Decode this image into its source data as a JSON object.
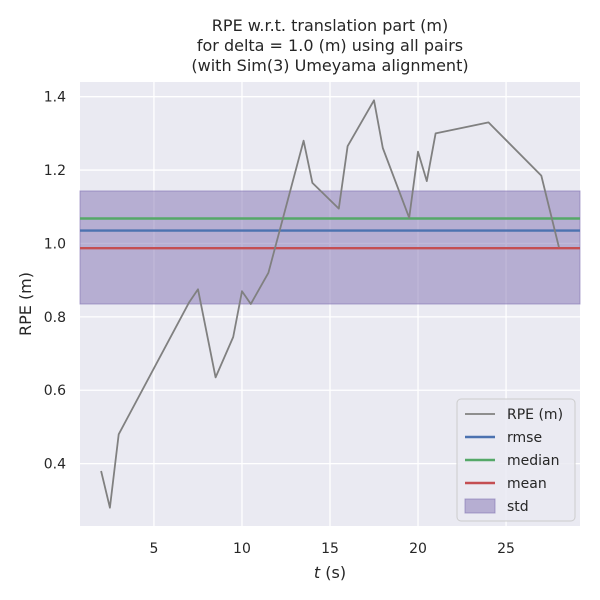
{
  "chart_data": {
    "type": "line",
    "title_lines": [
      "RPE w.r.t. translation part (m)",
      "for delta = 1.0 (m) using all pairs",
      "(with Sim(3) Umeyama alignment)"
    ],
    "xlabel_italic": "t",
    "xlabel_rest": " (s)",
    "ylabel": "RPE (m)",
    "xlim": [
      0.8,
      29.2
    ],
    "ylim": [
      0.23,
      1.44
    ],
    "xticks": [
      5,
      10,
      15,
      20,
      25
    ],
    "yticks": [
      0.4,
      0.6,
      0.8,
      1.0,
      1.2,
      1.4
    ],
    "xtick_labels": [
      "5",
      "10",
      "15",
      "20",
      "25"
    ],
    "ytick_labels": [
      "0.4",
      "0.6",
      "0.8",
      "1.0",
      "1.2",
      "1.4"
    ],
    "grid": true,
    "legend_position": "lower-right",
    "series": [
      {
        "name": "RPE (m)",
        "color": "#808080",
        "x": [
          2.0,
          2.5,
          3.0,
          7.0,
          7.5,
          8.5,
          9.5,
          10.0,
          10.5,
          11.5,
          13.5,
          14.0,
          15.5,
          16.0,
          17.5,
          18.0,
          19.5,
          20.0,
          20.5,
          21.0,
          24.0,
          27.0,
          28.0
        ],
        "y": [
          0.38,
          0.28,
          0.48,
          0.84,
          0.875,
          0.635,
          0.745,
          0.87,
          0.835,
          0.92,
          1.28,
          1.165,
          1.095,
          1.265,
          1.39,
          1.26,
          1.07,
          1.25,
          1.17,
          1.3,
          1.33,
          1.185,
          0.99
        ]
      }
    ],
    "hlines": [
      {
        "name": "rmse",
        "value": 1.035,
        "color": "#4c72b0"
      },
      {
        "name": "median",
        "value": 1.068,
        "color": "#55a868"
      },
      {
        "name": "mean",
        "value": 0.987,
        "color": "#c44e52"
      }
    ],
    "std_band": {
      "name": "std",
      "low": 0.835,
      "high": 1.143,
      "color": "#8172b2"
    }
  }
}
